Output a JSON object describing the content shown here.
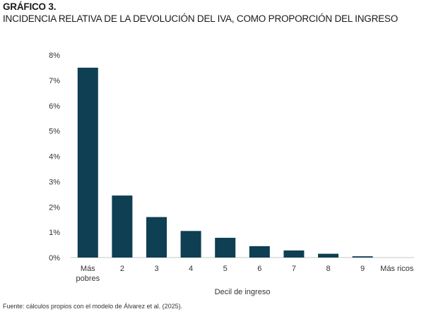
{
  "figure": {
    "label": "GRÁFICO 3.",
    "title": "INCIDENCIA RELATIVA DE LA DEVOLUCIÓN DEL IVA, COMO PROPORCIÓN DEL INGRESO",
    "source": "Fuente: cálculos propios con el modelo de Álvarez et al. (2025)."
  },
  "chart_data": {
    "type": "bar",
    "categories": [
      [
        "Más",
        "pobres"
      ],
      [
        "2"
      ],
      [
        "3"
      ],
      [
        "4"
      ],
      [
        "5"
      ],
      [
        "6"
      ],
      [
        "7"
      ],
      [
        "8"
      ],
      [
        "9"
      ],
      [
        "Más ricos"
      ]
    ],
    "values": [
      7.5,
      2.45,
      1.6,
      1.05,
      0.78,
      0.45,
      0.28,
      0.15,
      0.05,
      0.0
    ],
    "unit": "%",
    "ylim": [
      0,
      8
    ],
    "yticks": [
      "0%",
      "1%",
      "2%",
      "3%",
      "4%",
      "5%",
      "6%",
      "7%",
      "8%"
    ],
    "xlabel": "Decil de ingreso",
    "ylabel": "",
    "grid": false,
    "bar_color": "#0e3f52"
  }
}
